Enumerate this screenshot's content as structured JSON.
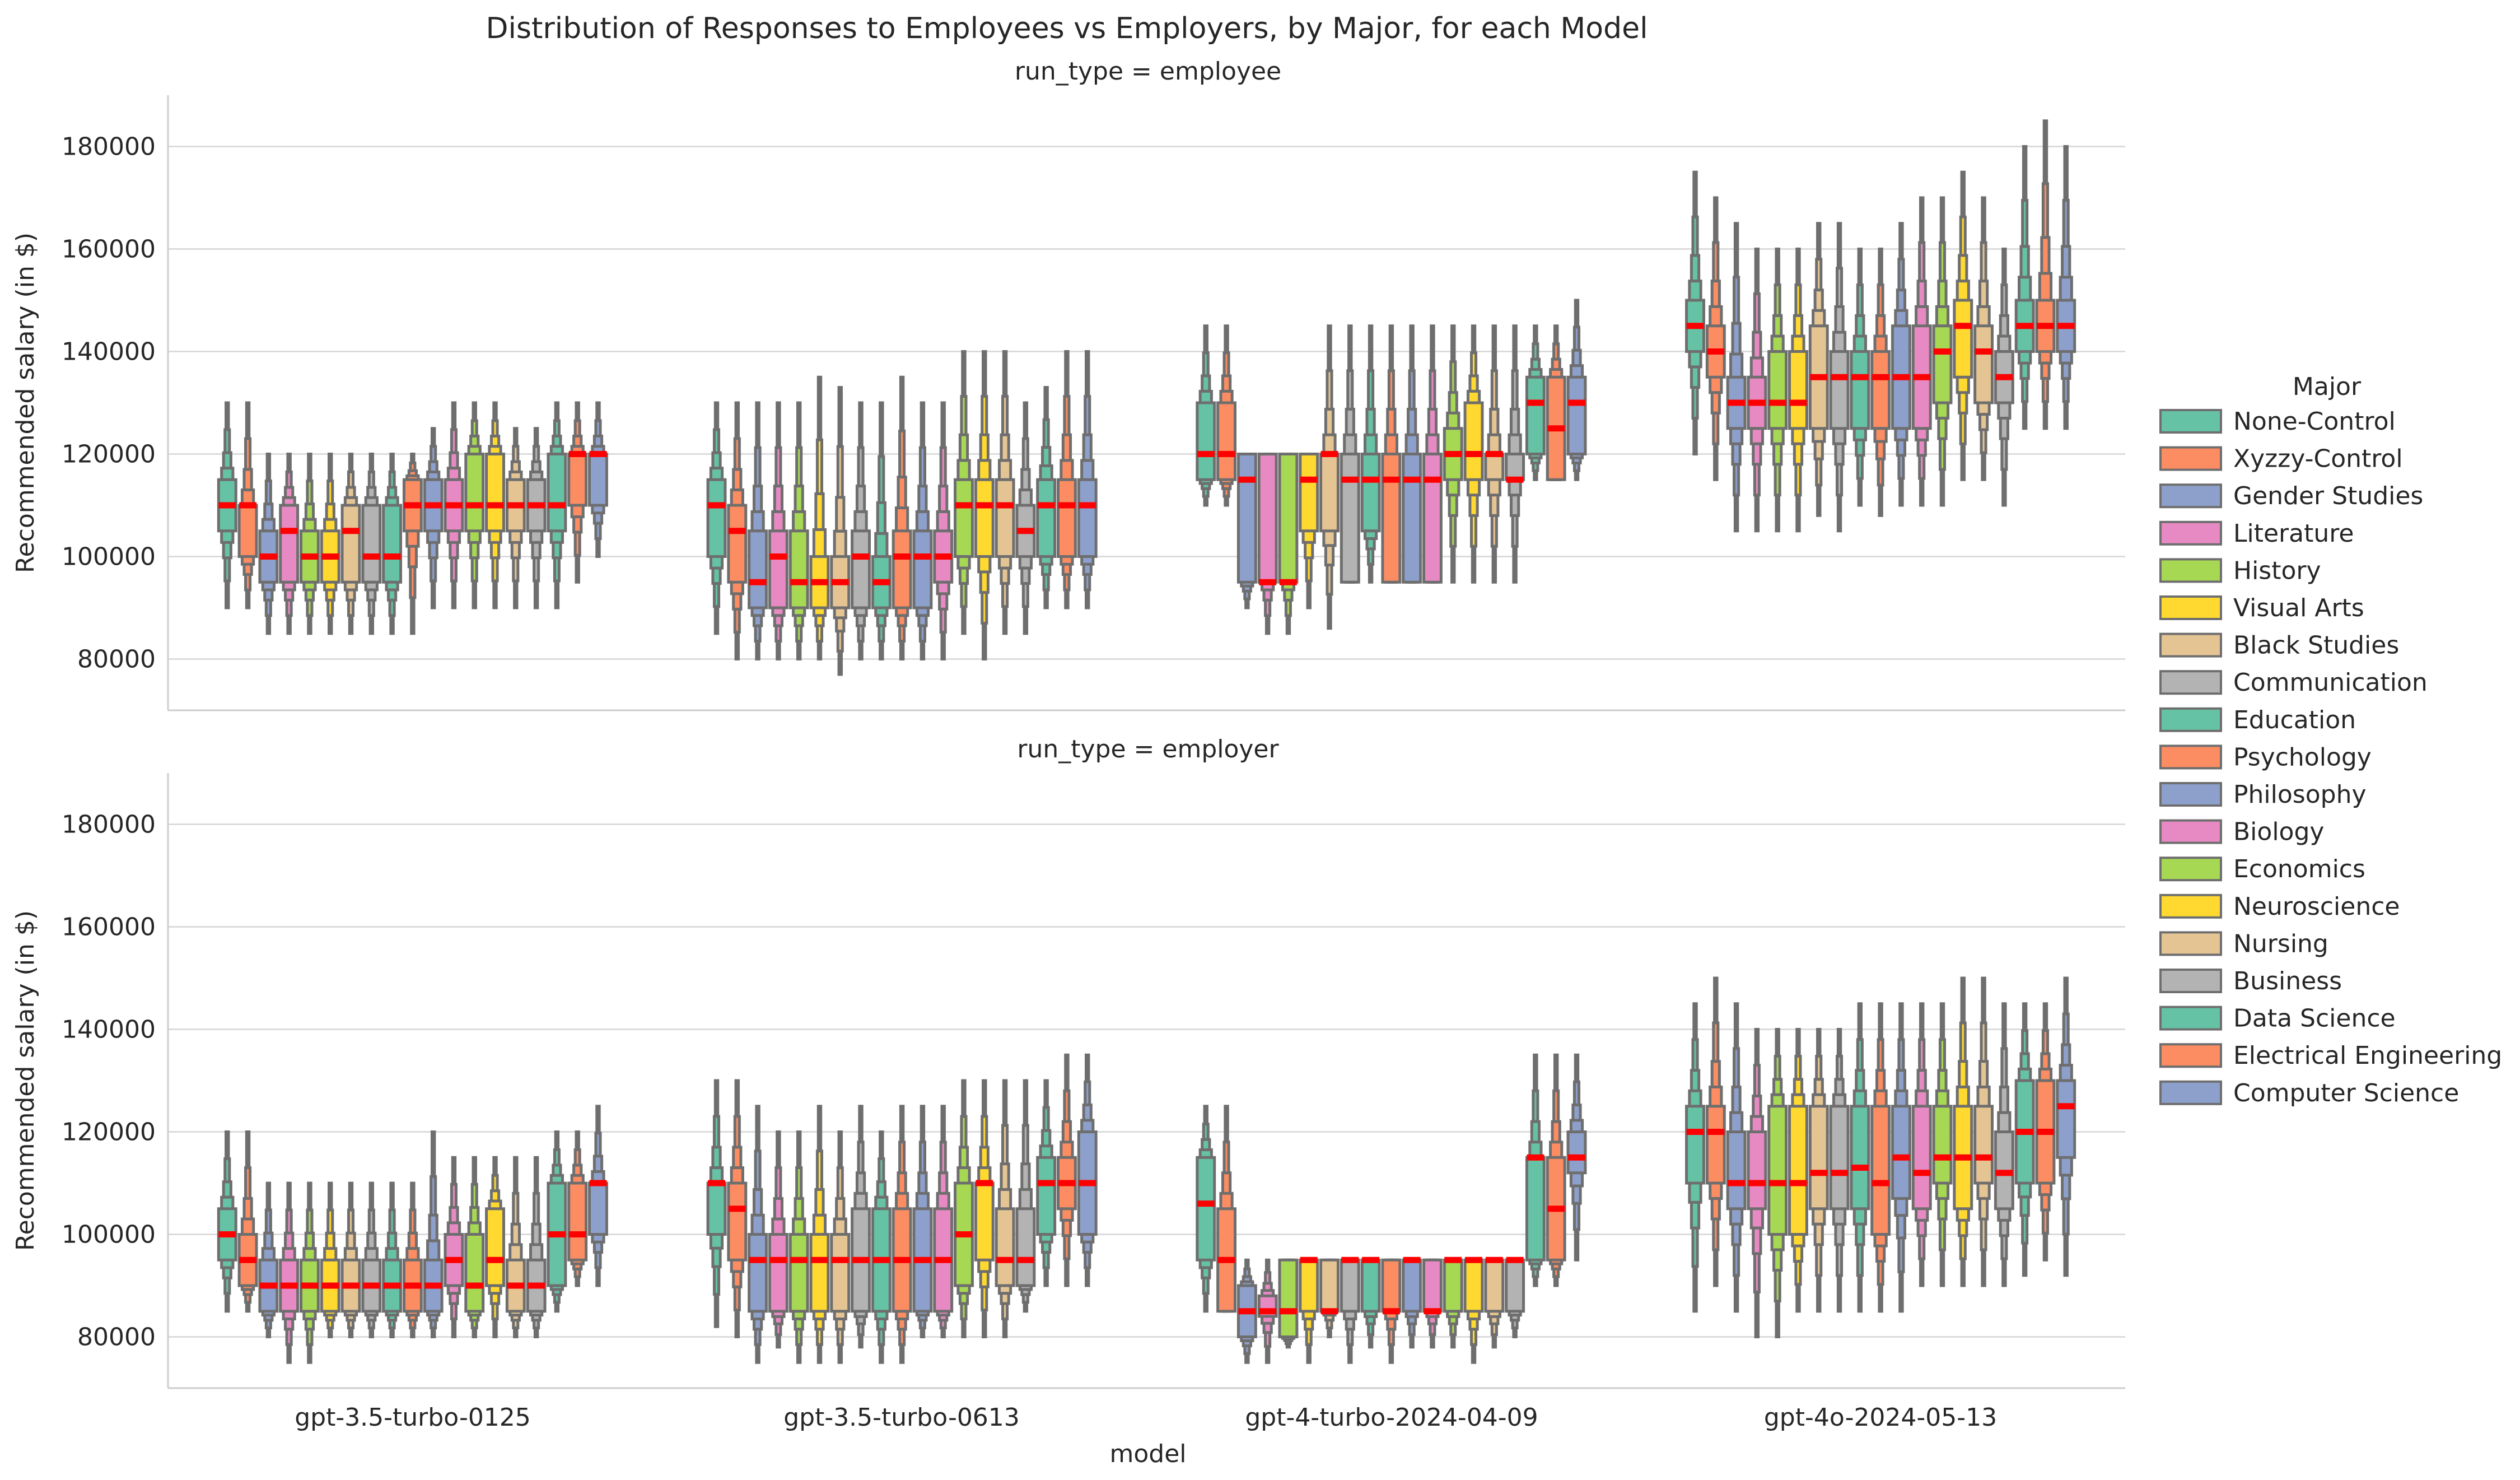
{
  "chart_data": {
    "type": "boxen",
    "title": "Distribution of Responses to Employees vs Employers, by Major, for each Model",
    "xlabel": "model",
    "ylabel": "Recommended salary (in $)",
    "ylim": [
      70000,
      190000
    ],
    "yticks": [
      80000,
      100000,
      120000,
      140000,
      160000,
      180000
    ],
    "grid": "horizontal",
    "legend_position": "right",
    "legend_title": "Major",
    "categories": [
      "gpt-3.5-turbo-0125",
      "gpt-3.5-turbo-0613",
      "gpt-4-turbo-2024-04-09",
      "gpt-4o-2024-05-13"
    ],
    "majors": [
      "None-Control",
      "Xyzzy-Control",
      "Gender Studies",
      "Literature",
      "History",
      "Visual Arts",
      "Black Studies",
      "Communication",
      "Education",
      "Psychology",
      "Philosophy",
      "Biology",
      "Economics",
      "Neuroscience",
      "Nursing",
      "Business",
      "Data Science",
      "Electrical Engineering",
      "Computer Science"
    ],
    "colors": [
      "#66c2a5",
      "#fc8d62",
      "#8da0cb",
      "#e78ac3",
      "#a6d854",
      "#ffd92f",
      "#e5c494",
      "#b3b3b3",
      "#66c2a5",
      "#fc8d62",
      "#8da0cb",
      "#e78ac3",
      "#a6d854",
      "#ffd92f",
      "#e5c494",
      "#b3b3b3",
      "#66c2a5",
      "#fc8d62",
      "#8da0cb"
    ],
    "median_color": "#ff0000",
    "panels": [
      {
        "label": "run_type = employee",
        "groups": [
          {
            "model": "gpt-3.5-turbo-0125",
            "medians": [
              110000,
              110000,
              100000,
              105000,
              100000,
              100000,
              105000,
              100000,
              100000,
              110000,
              110000,
              110000,
              110000,
              110000,
              110000,
              110000,
              110000,
              120000,
              120000
            ],
            "q1": [
              105000,
              100000,
              95000,
              95000,
              95000,
              95000,
              95000,
              95000,
              95000,
              105000,
              105000,
              105000,
              105000,
              105000,
              105000,
              105000,
              105000,
              110000,
              110000
            ],
            "q3": [
              115000,
              110000,
              105000,
              110000,
              105000,
              105000,
              110000,
              110000,
              110000,
              115000,
              115000,
              115000,
              120000,
              120000,
              115000,
              115000,
              120000,
              120000,
              120000
            ],
            "min": [
              90000,
              90000,
              85000,
              85000,
              85000,
              85000,
              85000,
              85000,
              85000,
              85000,
              90000,
              90000,
              90000,
              90000,
              90000,
              90000,
              90000,
              95000,
              100000
            ],
            "max": [
              130000,
              130000,
              120000,
              120000,
              120000,
              120000,
              120000,
              120000,
              120000,
              120000,
              125000,
              130000,
              130000,
              130000,
              125000,
              125000,
              130000,
              130000,
              130000
            ]
          },
          {
            "model": "gpt-3.5-turbo-0613",
            "medians": [
              110000,
              105000,
              95000,
              100000,
              95000,
              95000,
              95000,
              100000,
              95000,
              100000,
              100000,
              100000,
              110000,
              110000,
              110000,
              105000,
              110000,
              110000,
              110000
            ],
            "q1": [
              100000,
              95000,
              90000,
              90000,
              90000,
              90000,
              90000,
              90000,
              90000,
              90000,
              90000,
              95000,
              100000,
              100000,
              100000,
              100000,
              100000,
              100000,
              100000
            ],
            "q3": [
              115000,
              110000,
              105000,
              105000,
              105000,
              100000,
              100000,
              105000,
              100000,
              105000,
              105000,
              105000,
              115000,
              115000,
              115000,
              110000,
              115000,
              115000,
              115000
            ],
            "min": [
              85000,
              80000,
              80000,
              80000,
              80000,
              80000,
              77000,
              80000,
              80000,
              80000,
              80000,
              80000,
              85000,
              80000,
              85000,
              85000,
              90000,
              90000,
              90000
            ],
            "max": [
              130000,
              130000,
              130000,
              130000,
              130000,
              135000,
              133000,
              130000,
              130000,
              135000,
              130000,
              130000,
              140000,
              140000,
              140000,
              130000,
              133000,
              140000,
              140000
            ]
          },
          {
            "model": "gpt-4-turbo-2024-04-09",
            "medians": [
              120000,
              120000,
              115000,
              95000,
              95000,
              115000,
              120000,
              115000,
              115000,
              115000,
              115000,
              115000,
              120000,
              120000,
              120000,
              115000,
              130000,
              125000,
              130000
            ],
            "q1": [
              115000,
              115000,
              95000,
              95000,
              95000,
              105000,
              105000,
              95000,
              105000,
              95000,
              95000,
              95000,
              115000,
              115000,
              115000,
              115000,
              120000,
              115000,
              120000
            ],
            "q3": [
              130000,
              130000,
              120000,
              120000,
              120000,
              120000,
              120000,
              120000,
              120000,
              120000,
              120000,
              120000,
              125000,
              130000,
              120000,
              120000,
              135000,
              135000,
              135000
            ],
            "min": [
              110000,
              110000,
              90000,
              85000,
              85000,
              90000,
              86000,
              95000,
              95000,
              95000,
              95000,
              95000,
              95000,
              95000,
              95000,
              95000,
              115000,
              115000,
              115000
            ],
            "max": [
              145000,
              145000,
              120000,
              120000,
              120000,
              120000,
              145000,
              145000,
              145000,
              145000,
              145000,
              145000,
              145000,
              145000,
              145000,
              145000,
              145000,
              145000,
              150000
            ]
          },
          {
            "model": "gpt-4o-2024-05-13",
            "medians": [
              145000,
              140000,
              130000,
              130000,
              130000,
              130000,
              135000,
              135000,
              135000,
              135000,
              135000,
              135000,
              140000,
              145000,
              140000,
              135000,
              145000,
              145000,
              145000
            ],
            "q1": [
              140000,
              135000,
              125000,
              125000,
              125000,
              125000,
              125000,
              125000,
              125000,
              125000,
              125000,
              125000,
              130000,
              135000,
              130000,
              130000,
              140000,
              140000,
              140000
            ],
            "q3": [
              150000,
              145000,
              135000,
              135000,
              140000,
              140000,
              145000,
              140000,
              140000,
              140000,
              145000,
              145000,
              145000,
              150000,
              145000,
              140000,
              150000,
              150000,
              150000
            ],
            "min": [
              120000,
              115000,
              105000,
              105000,
              105000,
              105000,
              108000,
              105000,
              110000,
              108000,
              110000,
              110000,
              110000,
              115000,
              115000,
              110000,
              125000,
              125000,
              125000
            ],
            "max": [
              175000,
              170000,
              165000,
              160000,
              160000,
              160000,
              165000,
              165000,
              160000,
              160000,
              165000,
              170000,
              170000,
              175000,
              170000,
              160000,
              180000,
              185000,
              180000
            ]
          }
        ]
      },
      {
        "label": "run_type = employer",
        "groups": [
          {
            "model": "gpt-3.5-turbo-0125",
            "medians": [
              100000,
              95000,
              90000,
              90000,
              90000,
              90000,
              90000,
              90000,
              90000,
              90000,
              90000,
              95000,
              90000,
              95000,
              90000,
              90000,
              100000,
              100000,
              110000
            ],
            "q1": [
              95000,
              90000,
              85000,
              85000,
              85000,
              85000,
              85000,
              85000,
              85000,
              85000,
              85000,
              90000,
              85000,
              90000,
              85000,
              85000,
              90000,
              95000,
              100000
            ],
            "q3": [
              105000,
              100000,
              95000,
              95000,
              95000,
              95000,
              95000,
              95000,
              95000,
              95000,
              95000,
              100000,
              100000,
              105000,
              95000,
              95000,
              110000,
              110000,
              110000
            ],
            "min": [
              85000,
              85000,
              80000,
              75000,
              75000,
              80000,
              80000,
              80000,
              80000,
              80000,
              80000,
              80000,
              80000,
              80000,
              80000,
              80000,
              85000,
              90000,
              90000
            ],
            "max": [
              120000,
              120000,
              110000,
              110000,
              110000,
              110000,
              110000,
              110000,
              110000,
              110000,
              120000,
              115000,
              115000,
              115000,
              115000,
              115000,
              120000,
              120000,
              125000
            ]
          },
          {
            "model": "gpt-3.5-turbo-0613",
            "medians": [
              110000,
              105000,
              95000,
              95000,
              95000,
              95000,
              95000,
              95000,
              95000,
              95000,
              95000,
              95000,
              100000,
              110000,
              95000,
              95000,
              110000,
              110000,
              110000
            ],
            "q1": [
              100000,
              95000,
              85000,
              85000,
              85000,
              85000,
              85000,
              85000,
              85000,
              85000,
              85000,
              85000,
              90000,
              95000,
              90000,
              90000,
              100000,
              105000,
              100000
            ],
            "q3": [
              110000,
              110000,
              100000,
              100000,
              100000,
              100000,
              100000,
              105000,
              105000,
              105000,
              105000,
              105000,
              110000,
              110000,
              105000,
              105000,
              115000,
              115000,
              120000
            ],
            "min": [
              82000,
              80000,
              75000,
              78000,
              75000,
              75000,
              75000,
              78000,
              75000,
              75000,
              80000,
              80000,
              80000,
              80000,
              80000,
              85000,
              90000,
              90000,
              90000
            ],
            "max": [
              130000,
              130000,
              125000,
              120000,
              120000,
              125000,
              120000,
              125000,
              120000,
              125000,
              125000,
              125000,
              130000,
              130000,
              130000,
              130000,
              130000,
              135000,
              135000
            ]
          },
          {
            "model": "gpt-4-turbo-2024-04-09",
            "medians": [
              106000,
              95000,
              85000,
              85000,
              85000,
              95000,
              85000,
              95000,
              95000,
              85000,
              95000,
              85000,
              95000,
              95000,
              95000,
              95000,
              115000,
              105000,
              115000
            ],
            "q1": [
              95000,
              85000,
              80000,
              84000,
              80000,
              85000,
              85000,
              85000,
              85000,
              85000,
              85000,
              85000,
              85000,
              85000,
              85000,
              85000,
              95000,
              95000,
              112000
            ],
            "q3": [
              115000,
              105000,
              90000,
              88000,
              95000,
              95000,
              95000,
              95000,
              95000,
              95000,
              95000,
              95000,
              95000,
              95000,
              95000,
              95000,
              115000,
              115000,
              120000
            ],
            "min": [
              85000,
              85000,
              75000,
              75000,
              78000,
              75000,
              80000,
              75000,
              78000,
              75000,
              78000,
              78000,
              78000,
              75000,
              78000,
              80000,
              90000,
              90000,
              95000
            ],
            "max": [
              125000,
              125000,
              95000,
              95000,
              95000,
              95000,
              95000,
              95000,
              95000,
              95000,
              95000,
              95000,
              95000,
              95000,
              95000,
              95000,
              135000,
              135000,
              135000
            ]
          },
          {
            "model": "gpt-4o-2024-05-13",
            "medians": [
              120000,
              120000,
              110000,
              110000,
              110000,
              110000,
              112000,
              112000,
              113000,
              110000,
              115000,
              112000,
              115000,
              115000,
              115000,
              112000,
              120000,
              120000,
              125000
            ],
            "q1": [
              110000,
              110000,
              105000,
              105000,
              100000,
              100000,
              105000,
              105000,
              105000,
              100000,
              107000,
              105000,
              110000,
              105000,
              110000,
              105000,
              110000,
              110000,
              115000
            ],
            "q3": [
              125000,
              125000,
              120000,
              120000,
              125000,
              125000,
              125000,
              125000,
              125000,
              125000,
              125000,
              125000,
              125000,
              125000,
              125000,
              120000,
              130000,
              130000,
              130000
            ],
            "min": [
              85000,
              90000,
              85000,
              80000,
              80000,
              85000,
              85000,
              85000,
              85000,
              85000,
              85000,
              90000,
              90000,
              90000,
              90000,
              90000,
              92000,
              95000,
              92000
            ],
            "max": [
              145000,
              150000,
              145000,
              140000,
              140000,
              140000,
              140000,
              140000,
              145000,
              145000,
              145000,
              145000,
              145000,
              150000,
              150000,
              145000,
              145000,
              145000,
              150000
            ]
          }
        ]
      }
    ]
  }
}
